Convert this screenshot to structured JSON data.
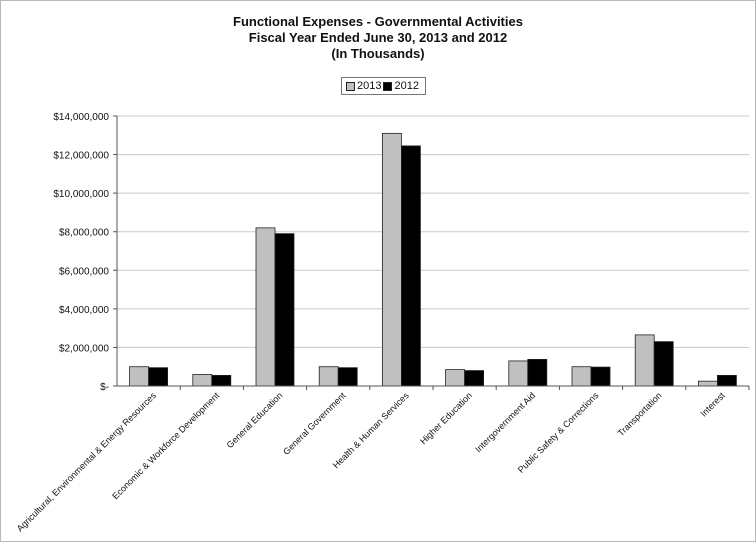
{
  "chart_data": {
    "type": "bar",
    "title": "Functional Expenses - Governmental Activities",
    "subtitle": "Fiscal Year Ended June 30, 2013 and 2012",
    "subtitle2": "(In Thousands)",
    "categories": [
      "Agricultural, Environmental & Energy Resources",
      "Economic & Workforce Development",
      "General Education",
      "General Government",
      "Health & Human Services",
      "Higher Education",
      "Intergovernment Aid",
      "Public Safety & Corrections",
      "Transportation",
      "Interest"
    ],
    "series": [
      {
        "name": "2013",
        "color": "#c0c0c0",
        "values": [
          1000000,
          600000,
          8200000,
          1000000,
          13100000,
          850000,
          1300000,
          1000000,
          2650000,
          250000
        ]
      },
      {
        "name": "2012",
        "color": "#000000",
        "values": [
          950000,
          550000,
          7900000,
          950000,
          12450000,
          800000,
          1380000,
          980000,
          2300000,
          550000
        ]
      }
    ],
    "ylim": [
      0,
      14000000
    ],
    "yticks": [
      "$-",
      "$2,000,000",
      "$4,000,000",
      "$6,000,000",
      "$8,000,000",
      "$10,000,000",
      "$12,000,000",
      "$14,000,000"
    ],
    "grid": true,
    "legend_position": "top"
  }
}
